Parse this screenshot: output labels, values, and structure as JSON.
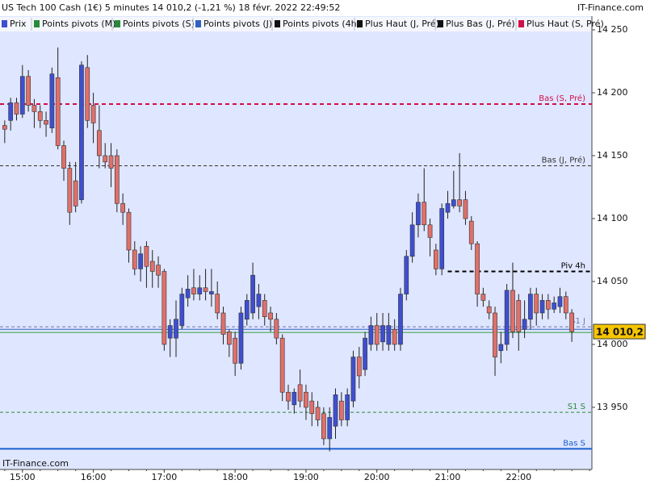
{
  "chart_data": {
    "type": "candlestick",
    "title": "US Tech 100 Cash (1€) 5 minutes 14 010,2 (-1,21 %) 18 févr. 2022 22:49:52",
    "source": "IT-Finance.com",
    "legend": [
      {
        "label": "Prix",
        "color": "#3f4fd0"
      },
      {
        "label": "Points pivots (M)",
        "color": "#2a8a3a"
      },
      {
        "label": "Points pivots (S)",
        "color": "#2a8a3a"
      },
      {
        "label": "Points pivots (J)",
        "color": "#3060c0"
      },
      {
        "label": "Points pivots (4h)",
        "color": "#111111"
      },
      {
        "label": "Plus Haut (J, Pré)",
        "color": "#111111"
      },
      {
        "label": "Plus Bas (J, Pré)",
        "color": "#111111"
      },
      {
        "label": "Plus Haut (S, Pré)",
        "color": "#d0104a"
      }
    ],
    "up_color": "#3f4fd0",
    "down_color": "#e0706a",
    "x": [
      "14:45",
      "14:50",
      "14:55",
      "15:00",
      "15:05",
      "15:10",
      "15:15",
      "15:20",
      "15:25",
      "15:30",
      "15:35",
      "15:40",
      "15:45",
      "15:50",
      "15:55",
      "16:00",
      "16:05",
      "16:10",
      "16:15",
      "16:20",
      "16:25",
      "16:30",
      "16:35",
      "16:40",
      "16:45",
      "16:50",
      "16:55",
      "17:00",
      "17:05",
      "17:10",
      "17:15",
      "17:20",
      "17:25",
      "17:30",
      "17:35",
      "17:40",
      "17:45",
      "17:50",
      "17:55",
      "18:00",
      "18:05",
      "18:10",
      "18:15",
      "18:20",
      "18:25",
      "18:30",
      "18:35",
      "18:40",
      "18:45",
      "18:50",
      "18:55",
      "19:00",
      "19:05",
      "19:10",
      "19:15",
      "19:20",
      "19:25",
      "19:30",
      "19:35",
      "19:40",
      "19:45",
      "19:50",
      "19:55",
      "20:00",
      "20:05",
      "20:10",
      "20:15",
      "20:20",
      "20:25",
      "20:30",
      "20:35",
      "20:40",
      "20:45",
      "20:50",
      "20:55",
      "21:00",
      "21:05",
      "21:10",
      "21:15",
      "21:20",
      "21:25",
      "21:30",
      "21:35",
      "21:40",
      "21:45",
      "21:50",
      "21:55",
      "22:00",
      "22:05",
      "22:10",
      "22:15",
      "22:20",
      "22:25",
      "22:30",
      "22:35",
      "22:40",
      "22:45"
    ],
    "open": [
      14174,
      14178,
      14192,
      14183,
      14213,
      14190,
      14185,
      14178,
      14172,
      14212,
      14158,
      14140,
      14130,
      14115,
      14220,
      14190,
      14170,
      14150,
      14150,
      14150,
      14112,
      14105,
      14075,
      14060,
      14078,
      14066,
      14063,
      14058,
      14005,
      14005,
      14015,
      14037,
      14045,
      14040,
      14045,
      14040,
      14040,
      14025,
      14010,
      14005,
      13985,
      14020,
      14025,
      14030,
      14035,
      14025,
      14020,
      14005,
      13962,
      13952,
      13968,
      13962,
      13955,
      13950,
      13945,
      13925,
      13935,
      13955,
      13940,
      13955,
      13990,
      13980,
      14000,
      14015,
      14002,
      14000,
      14012,
      14000,
      14040,
      14070,
      14095,
      14113,
      14095,
      14075,
      14060,
      14105,
      14110,
      14115,
      14115,
      14098,
      14080,
      14040,
      14030,
      14025,
      13995,
      14000,
      14043,
      14035,
      14012,
      14020,
      14040,
      14025,
      14035,
      14028,
      14030,
      14038,
      14025
    ],
    "high": [
      14178,
      14196,
      14196,
      14222,
      14218,
      14195,
      14190,
      14185,
      14220,
      14236,
      14162,
      14145,
      14145,
      14225,
      14230,
      14200,
      14190,
      14160,
      14160,
      14155,
      14120,
      14108,
      14082,
      14078,
      14082,
      14075,
      14070,
      14060,
      14020,
      14035,
      14045,
      14055,
      14060,
      14055,
      14060,
      14060,
      14050,
      14030,
      14012,
      14010,
      14030,
      14040,
      14065,
      14048,
      14040,
      14030,
      14025,
      14008,
      13968,
      13965,
      13980,
      13968,
      13962,
      13955,
      13950,
      13950,
      13965,
      13962,
      13965,
      13995,
      13998,
      14010,
      14022,
      14025,
      14025,
      14025,
      14020,
      14045,
      14075,
      14105,
      14120,
      14140,
      14100,
      14080,
      14112,
      14122,
      14138,
      14152,
      14122,
      14102,
      14082,
      14045,
      14035,
      14030,
      14010,
      14048,
      14065,
      14040,
      14035,
      14045,
      14045,
      14040,
      14040,
      14038,
      14045,
      14042,
      14028
    ],
    "low": [
      14160,
      14170,
      14178,
      14180,
      14185,
      14172,
      14172,
      14165,
      14168,
      14155,
      14130,
      14095,
      14105,
      14112,
      14172,
      14160,
      14140,
      14140,
      14125,
      14105,
      14095,
      14065,
      14055,
      14050,
      14045,
      14045,
      14045,
      13995,
      13990,
      13990,
      14012,
      14030,
      14035,
      14035,
      14035,
      14030,
      14020,
      14000,
      13990,
      13975,
      13980,
      14015,
      14020,
      14020,
      14015,
      14010,
      14000,
      13955,
      13948,
      13945,
      13950,
      13940,
      13935,
      13935,
      13920,
      13915,
      13925,
      13935,
      13935,
      13950,
      13965,
      13975,
      13995,
      13995,
      13995,
      13995,
      13995,
      13995,
      14035,
      14065,
      14085,
      14090,
      14070,
      14055,
      14055,
      14100,
      14108,
      14105,
      14095,
      14075,
      14030,
      14030,
      14020,
      13975,
      13985,
      13995,
      14005,
      13995,
      14005,
      14012,
      14015,
      14020,
      14020,
      14025,
      14025,
      14020,
      14002
    ],
    "close": [
      14171,
      14192,
      14183,
      14213,
      14190,
      14185,
      14178,
      14175,
      14215,
      14158,
      14140,
      14105,
      14110,
      14222,
      14178,
      14176,
      14150,
      14145,
      14140,
      14112,
      14105,
      14075,
      14060,
      14072,
      14062,
      14058,
      14055,
      14000,
      14015,
      14020,
      14040,
      14044,
      14040,
      14045,
      14042,
      14042,
      14025,
      14008,
      14000,
      13985,
      14025,
      14035,
      14055,
      14040,
      14022,
      14020,
      14005,
      13962,
      13955,
      13962,
      13955,
      13950,
      13945,
      13940,
      13925,
      13942,
      13960,
      13940,
      13960,
      13990,
      13975,
      14005,
      14015,
      14000,
      14015,
      14015,
      14000,
      14040,
      14070,
      14095,
      14113,
      14095,
      14085,
      14060,
      14108,
      14112,
      14115,
      14110,
      14100,
      14080,
      14040,
      14035,
      14025,
      13990,
      14000,
      14043,
      14010,
      14010,
      14020,
      14040,
      14025,
      14035,
      14028,
      14033,
      14038,
      14025,
      14010.2
    ],
    "last_price": {
      "value": 14010.2,
      "label": "14 010,2"
    },
    "levels": [
      {
        "label": "Bas (S, Pré)",
        "value": 14191,
        "color": "#d0104a",
        "dashed": true,
        "width": 2
      },
      {
        "label": "Bas (J, Pré)",
        "value": 14142,
        "color": "#333333",
        "dashed": true,
        "width": 1
      },
      {
        "label": "Piv 4h",
        "value": 14058,
        "color": "#000000",
        "dashed": true,
        "width": 2,
        "start": "21:00"
      },
      {
        "label": "S1 J",
        "value": 14014,
        "color": "#6a7aa8",
        "dashed": true,
        "width": 1
      },
      {
        "value": 14012,
        "color": "#3060c0",
        "dashed": false,
        "width": 1
      },
      {
        "value": 14009.5,
        "color": "#30a040",
        "dashed": false,
        "width": 1
      },
      {
        "label": "S1 S",
        "value": 13946,
        "color": "#2a8a3a",
        "dashed": true,
        "width": 1
      },
      {
        "label": "Bas S",
        "value": 13917,
        "color": "#1a5fd0",
        "dashed": false,
        "width": 2
      }
    ],
    "xlim": [
      "14:41",
      "23:02"
    ],
    "xticks": [
      "15:00",
      "16:00",
      "17:00",
      "18:00",
      "19:00",
      "20:00",
      "21:00",
      "22:00"
    ],
    "ylim": [
      13900.6,
      14260.9
    ],
    "yticks": [
      {
        "value": 14250,
        "label": "14 250"
      },
      {
        "value": 14200,
        "label": "14 200"
      },
      {
        "value": 14150,
        "label": "14 150"
      },
      {
        "value": 14100,
        "label": "14 100"
      },
      {
        "value": 14050,
        "label": "14 050"
      },
      {
        "value": 14000,
        "label": "14 000"
      },
      {
        "value": 13950,
        "label": "13 950"
      }
    ]
  }
}
